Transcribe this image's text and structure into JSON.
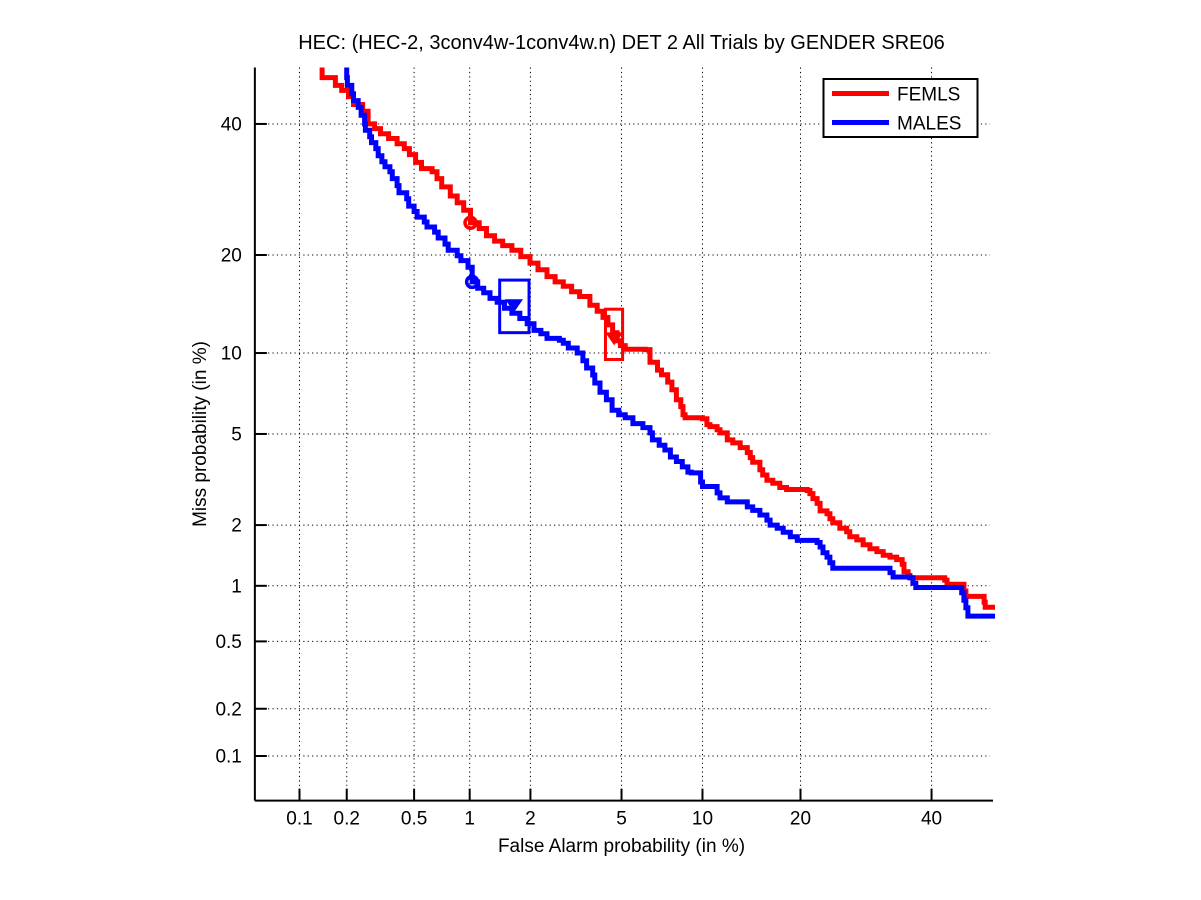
{
  "title": "HEC: (HEC-2, 3conv4w-1conv4w.n) DET 2 All Trials by GENDER SRE06",
  "chart_data": {
    "type": "line",
    "subtype": "DET-curve-probit-scale",
    "title": "HEC: (HEC-2, 3conv4w-1conv4w.n) DET 2 All Trials by GENDER SRE06",
    "xlabel": "False Alarm probability (in %)",
    "ylabel": "Miss probability (in %)",
    "grid": "dotted",
    "xlim_pct": [
      0.05,
      50
    ],
    "ylim_pct": [
      0.05,
      50
    ],
    "xticks_pct": [
      0.1,
      0.2,
      0.5,
      1,
      2,
      5,
      10,
      20,
      40
    ],
    "yticks_pct": [
      40,
      20,
      10,
      5,
      2,
      1,
      0.5,
      0.2,
      0.1
    ],
    "xtick_labels": [
      "0.1",
      "0.2",
      "0.5",
      "1",
      "2",
      "5",
      "10",
      "20",
      "40"
    ],
    "ytick_labels": [
      "40",
      "20",
      "10",
      "5",
      "2",
      "1",
      "0.5",
      "0.2",
      "0.1"
    ],
    "legend": {
      "position": "top-right",
      "entries": [
        {
          "label": "FEMLS",
          "color": "#ff0000"
        },
        {
          "label": "MALES",
          "color": "#0000ff"
        }
      ]
    },
    "series": [
      {
        "name": "FEMLS",
        "color": "#ff0000",
        "points": [
          [
            0.135,
            52
          ],
          [
            0.14,
            48.2
          ],
          [
            0.17,
            46.8
          ],
          [
            0.186,
            45.9
          ],
          [
            0.205,
            44.8
          ],
          [
            0.22,
            43.4
          ],
          [
            0.25,
            42.2
          ],
          [
            0.27,
            40
          ],
          [
            0.295,
            39.2
          ],
          [
            0.32,
            38.3
          ],
          [
            0.357,
            37.5
          ],
          [
            0.4,
            36.6
          ],
          [
            0.44,
            35.8
          ],
          [
            0.47,
            34.8
          ],
          [
            0.51,
            33.5
          ],
          [
            0.55,
            32.5
          ],
          [
            0.63,
            32
          ],
          [
            0.67,
            30.9
          ],
          [
            0.71,
            29.6
          ],
          [
            0.79,
            28.2
          ],
          [
            0.86,
            27.2
          ],
          [
            0.93,
            26.1
          ],
          [
            1.01,
            24.3
          ],
          [
            1.12,
            23.5
          ],
          [
            1.22,
            22.5
          ],
          [
            1.34,
            21.8
          ],
          [
            1.47,
            21.2
          ],
          [
            1.63,
            20.6
          ],
          [
            1.8,
            19.8
          ],
          [
            1.99,
            19
          ],
          [
            2.17,
            18.2
          ],
          [
            2.39,
            17.4
          ],
          [
            2.6,
            16.8
          ],
          [
            2.83,
            16.3
          ],
          [
            3.08,
            15.7
          ],
          [
            3.34,
            15.2
          ],
          [
            3.7,
            14.3
          ],
          [
            3.97,
            13.7
          ],
          [
            4.2,
            13.1
          ],
          [
            4.4,
            12.4
          ],
          [
            4.6,
            11.7
          ],
          [
            4.8,
            11
          ],
          [
            4.95,
            10.6
          ],
          [
            5.17,
            10.3
          ],
          [
            6.2,
            10.27
          ],
          [
            6.46,
            9.3
          ],
          [
            6.9,
            8.72
          ],
          [
            7.14,
            8.4
          ],
          [
            7.53,
            7.9
          ],
          [
            7.8,
            7.4
          ],
          [
            8.1,
            6.8
          ],
          [
            8.4,
            6.4
          ],
          [
            8.55,
            5.95
          ],
          [
            8.7,
            5.8
          ],
          [
            10,
            5.75
          ],
          [
            10.35,
            5.45
          ],
          [
            10.6,
            5.35
          ],
          [
            11.2,
            5.2
          ],
          [
            11.45,
            5.05
          ],
          [
            12.1,
            4.73
          ],
          [
            12.6,
            4.6
          ],
          [
            13.3,
            4.4
          ],
          [
            14,
            4.2
          ],
          [
            14.3,
            4
          ],
          [
            14.55,
            3.82
          ],
          [
            15.3,
            3.55
          ],
          [
            15.6,
            3.37
          ],
          [
            16.05,
            3.2
          ],
          [
            16.7,
            3.1
          ],
          [
            17.5,
            2.97
          ],
          [
            18.3,
            2.91
          ],
          [
            20.85,
            2.88
          ],
          [
            21.2,
            2.79
          ],
          [
            21.6,
            2.65
          ],
          [
            22.15,
            2.52
          ],
          [
            22.55,
            2.33
          ],
          [
            23.5,
            2.26
          ],
          [
            23.9,
            2.14
          ],
          [
            24.3,
            2.05
          ],
          [
            25.3,
            1.93
          ],
          [
            26.3,
            1.86
          ],
          [
            26.75,
            1.76
          ],
          [
            27.8,
            1.7
          ],
          [
            28.75,
            1.61
          ],
          [
            29.8,
            1.54
          ],
          [
            30.9,
            1.49
          ],
          [
            31.9,
            1.43
          ],
          [
            33,
            1.4
          ],
          [
            34.1,
            1.36
          ],
          [
            35,
            1.29
          ],
          [
            35.3,
            1.18
          ],
          [
            36,
            1.13
          ],
          [
            36.3,
            1.1
          ],
          [
            42.3,
            1.07
          ],
          [
            42.7,
            1.02
          ],
          [
            45.3,
            1.02
          ],
          [
            45.7,
            0.94
          ],
          [
            46.05,
            0.88
          ],
          [
            49.1,
            0.88
          ],
          [
            49.3,
            0.82
          ],
          [
            49.5,
            0.77
          ],
          [
            51.5,
            0.77
          ]
        ],
        "markers": {
          "circle_pct": [
            1.01,
            24.3
          ],
          "triangle_pct": [
            4.67,
            11.2
          ],
          "box_pct": {
            "fa": [
              4.3,
              5.05
            ],
            "miss": [
              9.5,
              13.9
            ]
          }
        }
      },
      {
        "name": "MALES",
        "color": "#0000ff",
        "points": [
          [
            0.197,
            52
          ],
          [
            0.2,
            48.2
          ],
          [
            0.202,
            46.8
          ],
          [
            0.215,
            45.3
          ],
          [
            0.22,
            44.1
          ],
          [
            0.235,
            42.9
          ],
          [
            0.245,
            41.5
          ],
          [
            0.257,
            40
          ],
          [
            0.26,
            38.9
          ],
          [
            0.276,
            37.8
          ],
          [
            0.283,
            36.8
          ],
          [
            0.3,
            35.8
          ],
          [
            0.31,
            34.6
          ],
          [
            0.326,
            33.6
          ],
          [
            0.34,
            32.8
          ],
          [
            0.363,
            32
          ],
          [
            0.375,
            30.9
          ],
          [
            0.4,
            29.8
          ],
          [
            0.41,
            28.7
          ],
          [
            0.454,
            27.8
          ],
          [
            0.466,
            26.7
          ],
          [
            0.5,
            25.9
          ],
          [
            0.52,
            25.1
          ],
          [
            0.57,
            24.4
          ],
          [
            0.59,
            23.7
          ],
          [
            0.65,
            23
          ],
          [
            0.68,
            22.2
          ],
          [
            0.74,
            21.4
          ],
          [
            0.77,
            20.6
          ],
          [
            0.86,
            19.9
          ],
          [
            0.9,
            19.3
          ],
          [
            0.98,
            18.5
          ],
          [
            1.03,
            16.8
          ],
          [
            1.1,
            16.1
          ],
          [
            1.18,
            15.6
          ],
          [
            1.27,
            15
          ],
          [
            1.38,
            14.6
          ],
          [
            1.5,
            14
          ],
          [
            1.63,
            13.5
          ],
          [
            1.78,
            13
          ],
          [
            1.93,
            12.5
          ],
          [
            2.08,
            11.9
          ],
          [
            2.24,
            11.6
          ],
          [
            2.39,
            11.2
          ],
          [
            2.72,
            11.05
          ],
          [
            2.83,
            10.8
          ],
          [
            2.98,
            10.4
          ],
          [
            3.26,
            10
          ],
          [
            3.45,
            9.4
          ],
          [
            3.58,
            8.87
          ],
          [
            3.8,
            8.38
          ],
          [
            3.88,
            7.84
          ],
          [
            4.08,
            7.25
          ],
          [
            4.34,
            6.8
          ],
          [
            4.58,
            6.2
          ],
          [
            4.87,
            5.95
          ],
          [
            5.17,
            5.8
          ],
          [
            5.55,
            5.5
          ],
          [
            6.07,
            5.3
          ],
          [
            6.46,
            5.05
          ],
          [
            6.6,
            4.73
          ],
          [
            7,
            4.5
          ],
          [
            7.35,
            4.3
          ],
          [
            7.7,
            4.02
          ],
          [
            8.1,
            3.85
          ],
          [
            8.5,
            3.65
          ],
          [
            8.9,
            3.47
          ],
          [
            9.15,
            3.44
          ],
          [
            9.85,
            3.14
          ],
          [
            10,
            3
          ],
          [
            11.2,
            2.81
          ],
          [
            11.45,
            2.67
          ],
          [
            12.1,
            2.56
          ],
          [
            13.6,
            2.56
          ],
          [
            14,
            2.43
          ],
          [
            14.55,
            2.34
          ],
          [
            15.3,
            2.23
          ],
          [
            16.05,
            2.11
          ],
          [
            16.4,
            2
          ],
          [
            17.2,
            1.93
          ],
          [
            17.9,
            1.85
          ],
          [
            18.75,
            1.76
          ],
          [
            19.6,
            1.69
          ],
          [
            22.15,
            1.65
          ],
          [
            22.55,
            1.57
          ],
          [
            22.95,
            1.47
          ],
          [
            23.5,
            1.4
          ],
          [
            23.9,
            1.31
          ],
          [
            24.3,
            1.23
          ],
          [
            32.7,
            1.23
          ],
          [
            33,
            1.17
          ],
          [
            33.5,
            1.11
          ],
          [
            36.3,
            1.1
          ],
          [
            36.8,
            1.03
          ],
          [
            37.3,
            0.98
          ],
          [
            45,
            0.98
          ],
          [
            45.3,
            0.92
          ],
          [
            45.7,
            0.84
          ],
          [
            46.05,
            0.765
          ],
          [
            46.4,
            0.69
          ],
          [
            51.5,
            0.67
          ]
        ],
        "markers": {
          "circle_pct": [
            1.03,
            16.8
          ],
          "triangle_pct": [
            1.67,
            14.3
          ],
          "box_pct": {
            "fa": [
              1.42,
              1.97
            ],
            "miss": [
              11.7,
              17.0
            ]
          }
        }
      }
    ]
  }
}
